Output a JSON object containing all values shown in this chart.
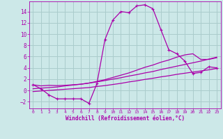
{
  "xlabel": "Windchill (Refroidissement éolien,°C)",
  "background_color": "#cce8e8",
  "grid_color": "#aacccc",
  "line_color": "#aa00aa",
  "xlim": [
    -0.5,
    23.5
  ],
  "ylim": [
    -3.2,
    15.8
  ],
  "xticks": [
    0,
    1,
    2,
    3,
    4,
    5,
    6,
    7,
    8,
    9,
    10,
    11,
    12,
    13,
    14,
    15,
    16,
    17,
    18,
    19,
    20,
    21,
    22,
    23
  ],
  "yticks": [
    -2,
    0,
    2,
    4,
    6,
    8,
    10,
    12,
    14
  ],
  "line1_x": [
    0,
    1,
    2,
    3,
    4,
    5,
    6,
    7,
    8,
    9,
    10,
    11,
    12,
    13,
    14,
    15,
    16,
    17,
    18,
    19,
    20,
    21,
    22,
    23
  ],
  "line1_y": [
    1.0,
    0.3,
    -0.8,
    -1.5,
    -1.5,
    -1.5,
    -1.5,
    -2.3,
    1.2,
    9.0,
    12.5,
    14.0,
    13.8,
    15.0,
    15.2,
    14.5,
    10.8,
    7.2,
    6.5,
    5.2,
    3.0,
    3.2,
    4.2,
    4.0
  ],
  "line2_x": [
    0,
    1,
    2,
    3,
    4,
    5,
    6,
    7,
    8,
    9,
    10,
    11,
    12,
    13,
    14,
    15,
    16,
    17,
    18,
    19,
    20,
    21,
    22,
    23
  ],
  "line2_y": [
    -0.2,
    -0.1,
    0.0,
    0.1,
    0.2,
    0.3,
    0.4,
    0.5,
    0.7,
    0.85,
    1.05,
    1.25,
    1.5,
    1.7,
    1.95,
    2.15,
    2.4,
    2.6,
    2.85,
    3.05,
    3.25,
    3.45,
    3.65,
    3.9
  ],
  "line3_x": [
    0,
    1,
    2,
    3,
    4,
    5,
    6,
    7,
    8,
    9,
    10,
    11,
    12,
    13,
    14,
    15,
    16,
    17,
    18,
    19,
    20,
    21,
    22,
    23
  ],
  "line3_y": [
    0.3,
    0.4,
    0.5,
    0.6,
    0.8,
    0.95,
    1.1,
    1.3,
    1.5,
    1.75,
    2.0,
    2.25,
    2.55,
    2.8,
    3.1,
    3.35,
    3.7,
    4.0,
    4.3,
    4.6,
    4.9,
    5.2,
    5.55,
    5.9
  ],
  "line4_x": [
    0,
    1,
    2,
    3,
    4,
    5,
    6,
    7,
    8,
    9,
    10,
    11,
    12,
    13,
    14,
    15,
    16,
    17,
    18,
    19,
    20,
    21,
    22,
    23
  ],
  "line4_y": [
    1.0,
    0.8,
    0.9,
    0.85,
    0.9,
    1.0,
    1.1,
    1.3,
    1.6,
    1.9,
    2.3,
    2.7,
    3.1,
    3.6,
    4.1,
    4.5,
    5.0,
    5.4,
    5.9,
    6.3,
    6.5,
    5.5,
    5.5,
    5.8
  ]
}
